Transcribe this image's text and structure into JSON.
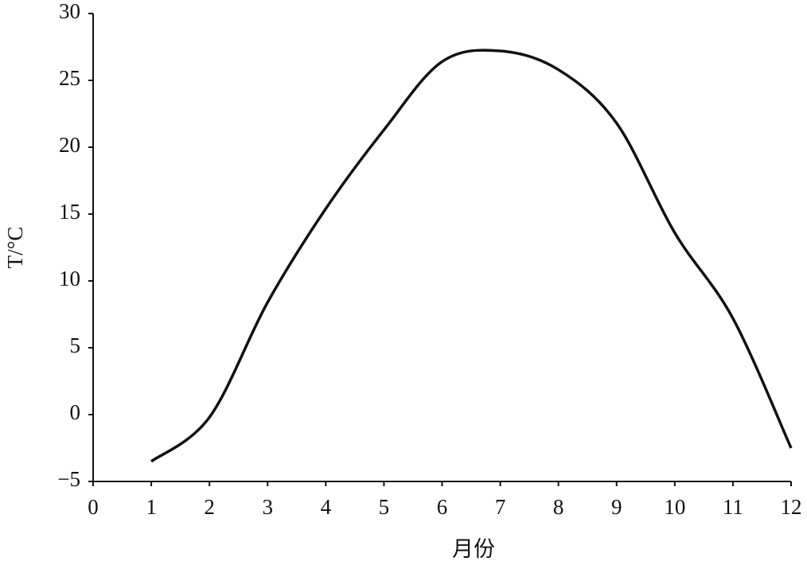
{
  "chart_data": {
    "type": "line",
    "x_label": "月份",
    "y_label": "T/°C",
    "x": [
      1,
      2,
      3,
      4,
      5,
      6,
      7,
      8,
      9,
      10,
      11,
      12
    ],
    "series": [
      {
        "color": "#111111",
        "values": [
          -3.5,
          -0.2,
          8.4,
          15.4,
          21.3,
          26.4,
          27.2,
          25.8,
          21.8,
          13.6,
          7.2,
          -2.5
        ]
      }
    ],
    "xlim": [
      0,
      12
    ],
    "xticks": [
      0,
      1,
      2,
      3,
      4,
      5,
      6,
      7,
      8,
      9,
      10,
      11,
      12
    ],
    "ylim": [
      -5,
      30
    ],
    "yticks": [
      {
        "value": -5,
        "label": "−5"
      },
      0,
      5,
      10,
      15,
      20,
      25,
      30
    ],
    "grid": false
  }
}
